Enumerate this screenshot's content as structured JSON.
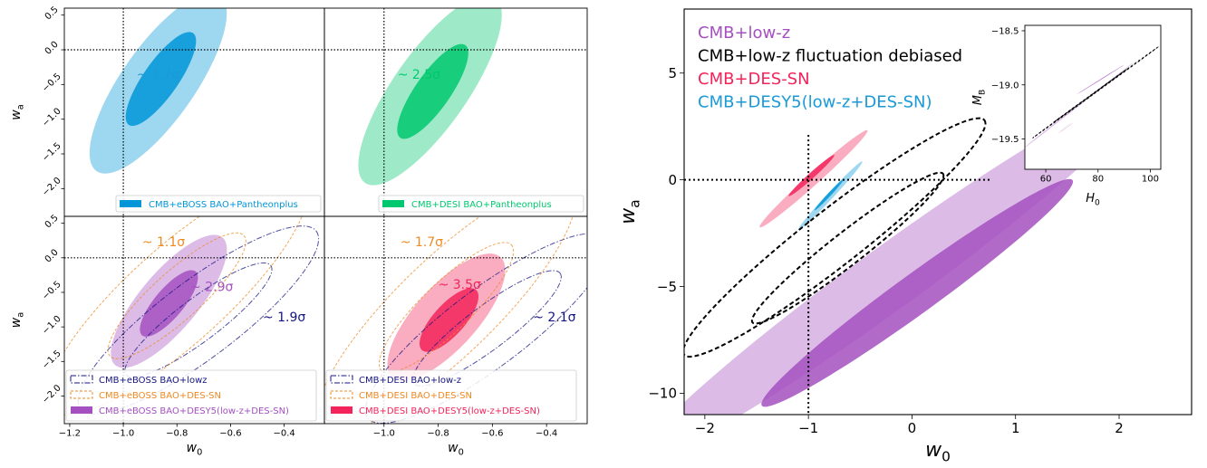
{
  "colors": {
    "eboss_blue": "#0096d8",
    "desi_green": "#00c86e",
    "purple": "#a450c0",
    "pink": "#f2245a",
    "orange": "#ee8a23",
    "navy": "#141480",
    "black": "#000000",
    "cyan_text": "#1a9ad6"
  },
  "chart_data": [
    {
      "type": "scatter",
      "panel": "top-left",
      "xlabel": "",
      "ylabel": "w_a",
      "xlim": [
        -1.22,
        -0.25
      ],
      "ylim": [
        -2.4,
        0.6
      ],
      "reference_lines": {
        "x": -1.0,
        "y": 0.0
      },
      "yticks": [
        "0.5",
        "0.0",
        "−0.5",
        "−1.0",
        "−1.5",
        "−2.0"
      ],
      "contours": [
        {
          "series": "CMB+eBOSS BAO+Pantheonplus",
          "color": "#0096d8",
          "level": "95%",
          "cx": -0.87,
          "cy": -0.48,
          "rx": 0.23,
          "ry": 0.038,
          "angle_deg": 55
        },
        {
          "series": "CMB+eBOSS BAO+Pantheonplus",
          "color": "#0096d8",
          "level": "68%",
          "cx": -0.86,
          "cy": -0.42,
          "rx": 0.12,
          "ry": 0.018,
          "angle_deg": 55
        }
      ],
      "annotations": [
        {
          "text": "~ 1.7σ",
          "x": -0.95,
          "y": -0.42,
          "color": "#1a9ad6"
        }
      ],
      "legend": {
        "placement": "lower-right",
        "entries": [
          {
            "label": "CMB+eBOSS BAO+Pantheonplus",
            "style": "filled",
            "color": "#0096d8"
          }
        ]
      }
    },
    {
      "type": "scatter",
      "panel": "top-right",
      "xlabel": "",
      "ylabel": "",
      "xlim": [
        -1.22,
        -0.25
      ],
      "ylim": [
        -2.4,
        0.6
      ],
      "reference_lines": {
        "x": -1.0,
        "y": 0.0
      },
      "contours": [
        {
          "series": "CMB+DESI BAO+Pantheonplus",
          "color": "#00c86e",
          "level": "95%",
          "cx": -0.83,
          "cy": -0.58,
          "rx": 0.24,
          "ry": 0.038,
          "angle_deg": 55
        },
        {
          "series": "CMB+DESI BAO+Pantheonplus",
          "color": "#00c86e",
          "level": "68%",
          "cx": -0.82,
          "cy": -0.6,
          "rx": 0.12,
          "ry": 0.018,
          "angle_deg": 55
        }
      ],
      "annotations": [
        {
          "text": "~ 2.5σ",
          "x": -0.95,
          "y": -0.42,
          "color": "#00c86e"
        }
      ],
      "legend": {
        "placement": "lower-right",
        "entries": [
          {
            "label": "CMB+DESI BAO+Pantheonplus",
            "style": "filled",
            "color": "#00c86e"
          }
        ]
      }
    },
    {
      "type": "scatter",
      "panel": "bottom-left",
      "xlabel": "w_0",
      "ylabel": "w_a",
      "xlim": [
        -1.22,
        -0.25
      ],
      "ylim": [
        -2.4,
        0.6
      ],
      "reference_lines": {
        "x": -1.0,
        "y": 0.0
      },
      "xticks": [
        "−1.2",
        "−1.0",
        "−0.8",
        "−0.6",
        "−0.4"
      ],
      "yticks": [
        "0.5",
        "0.0",
        "−0.5",
        "−1.0",
        "−1.5",
        "−2.0"
      ],
      "contours": [
        {
          "series": "CMB+eBOSS BAO+lowz",
          "color": "#141480",
          "level": "95%",
          "style": "dashdot",
          "cx": -0.72,
          "cy": -0.9,
          "rx": 0.44,
          "ry": 0.04,
          "angle_deg": 37
        },
        {
          "series": "CMB+eBOSS BAO+lowz",
          "color": "#141480",
          "level": "68%",
          "style": "dashdot",
          "cx": -0.72,
          "cy": -0.9,
          "rx": 0.27,
          "ry": 0.022,
          "angle_deg": 37
        },
        {
          "series": "CMB+eBOSS BAO+DES-SN",
          "color": "#ee8a23",
          "level": "95%",
          "style": "dashed",
          "cx": -0.8,
          "cy": -0.55,
          "rx": 0.47,
          "ry": 0.05,
          "angle_deg": 42
        },
        {
          "series": "CMB+eBOSS BAO+DES-SN",
          "color": "#ee8a23",
          "level": "68%",
          "style": "dashed",
          "cx": -0.8,
          "cy": -0.55,
          "rx": 0.25,
          "ry": 0.025,
          "angle_deg": 42
        },
        {
          "series": "CMB+eBOSS BAO+DESY5(low-z+DES-SN)",
          "color": "#a450c0",
          "level": "95%",
          "cx": -0.83,
          "cy": -0.63,
          "rx": 0.2,
          "ry": 0.03,
          "angle_deg": 50
        },
        {
          "series": "CMB+eBOSS BAO+DESY5(low-z+DES-SN)",
          "color": "#a450c0",
          "level": "68%",
          "cx": -0.83,
          "cy": -0.66,
          "rx": 0.1,
          "ry": 0.015,
          "angle_deg": 50
        }
      ],
      "annotations": [
        {
          "text": "~ 1.1σ",
          "x": -0.93,
          "y": 0.17,
          "color": "#ee8a23"
        },
        {
          "text": "~ 2.9σ",
          "x": -0.75,
          "y": -0.48,
          "color": "#a450c0"
        },
        {
          "text": "~ 1.9σ",
          "x": -0.48,
          "y": -0.92,
          "color": "#141480"
        }
      ],
      "legend": {
        "placement": "lower-center",
        "entries": [
          {
            "label": "CMB+eBOSS BAO+lowz",
            "style": "dashdot",
            "color": "#141480"
          },
          {
            "label": "CMB+eBOSS BAO+DES-SN",
            "style": "dashed",
            "color": "#ee8a23"
          },
          {
            "label": "CMB+eBOSS BAO+DESY5(low-z+DES-SN)",
            "style": "filled",
            "color": "#a450c0"
          }
        ]
      }
    },
    {
      "type": "scatter",
      "panel": "bottom-right",
      "xlabel": "w_0",
      "ylabel": "",
      "xlim": [
        -1.22,
        -0.25
      ],
      "ylim": [
        -2.4,
        0.6
      ],
      "reference_lines": {
        "x": -1.0,
        "y": 0.0
      },
      "xticks": [
        "−1.0",
        "−0.8",
        "−0.6",
        "−0.4"
      ],
      "contours": [
        {
          "series": "CMB+DESI BAO+low-z",
          "color": "#141480",
          "level": "95%",
          "style": "dashdot",
          "cx": -0.62,
          "cy": -1.02,
          "rx": 0.44,
          "ry": 0.04,
          "angle_deg": 37
        },
        {
          "series": "CMB+DESI BAO+low-z",
          "color": "#141480",
          "level": "68%",
          "style": "dashdot",
          "cx": -0.62,
          "cy": -1.02,
          "rx": 0.27,
          "ry": 0.022,
          "angle_deg": 37
        },
        {
          "series": "CMB+DESI BAO+DES-SN",
          "color": "#ee8a23",
          "level": "95%",
          "style": "dashed",
          "cx": -0.77,
          "cy": -0.72,
          "rx": 0.46,
          "ry": 0.05,
          "angle_deg": 44
        },
        {
          "series": "CMB+DESI BAO+DES-SN",
          "color": "#ee8a23",
          "level": "68%",
          "style": "dashed",
          "cx": -0.77,
          "cy": -0.72,
          "rx": 0.24,
          "ry": 0.025,
          "angle_deg": 44
        },
        {
          "series": "CMB+DESI BAO+DESY5(low-z+DES-SN)",
          "color": "#f2245a",
          "level": "95%",
          "cx": -0.77,
          "cy": -0.86,
          "rx": 0.2,
          "ry": 0.032,
          "angle_deg": 48
        },
        {
          "series": "CMB+DESI BAO+DESY5(low-z+DES-SN)",
          "color": "#f2245a",
          "level": "68%",
          "cx": -0.76,
          "cy": -0.9,
          "rx": 0.1,
          "ry": 0.016,
          "angle_deg": 48
        }
      ],
      "annotations": [
        {
          "text": "~ 1.7σ",
          "x": -0.94,
          "y": 0.17,
          "color": "#ee8a23"
        },
        {
          "text": "~ 3.5σ",
          "x": -0.8,
          "y": -0.45,
          "color": "#f2245a"
        },
        {
          "text": "~ 2.1σ",
          "x": -0.45,
          "y": -0.92,
          "color": "#141480"
        }
      ],
      "legend": {
        "placement": "lower-center",
        "entries": [
          {
            "label": "CMB+DESI BAO+low-z",
            "style": "dashdot",
            "color": "#141480"
          },
          {
            "label": "CMB+DESI BAO+DES-SN",
            "style": "dashed",
            "color": "#ee8a23"
          },
          {
            "label": "CMB+DESI BAO+DESY5(low-z+DES-SN)",
            "style": "filled",
            "color": "#f2245a"
          }
        ]
      }
    },
    {
      "type": "scatter",
      "panel": "main-right",
      "xlabel": "w_0",
      "ylabel": "w_a",
      "xlim": [
        -2.2,
        2.7
      ],
      "ylim": [
        -11,
        8
      ],
      "reference_lines": {
        "x": -1.0,
        "y": 0.0,
        "x_line_ymax": 2.1,
        "y_line_xmax": 0.75
      },
      "xticks": [
        "−2",
        "−1",
        "0",
        "1",
        "2"
      ],
      "yticks": [
        "5",
        "0",
        "−5",
        "−10"
      ],
      "contours": [
        {
          "series": "CMB+low-z",
          "color": "#a450c0",
          "level": "95%",
          "cx": -0.22,
          "cy": -4.6,
          "rx": 2.42,
          "ry": 0.27,
          "angle_deg": 36
        },
        {
          "series": "CMB+low-z",
          "color": "#a450c0",
          "level": "68%",
          "cx": 0.05,
          "cy": -5.3,
          "rx": 1.5,
          "ry": 0.17,
          "angle_deg": 36
        },
        {
          "series": "CMB+low-z fluctuation debiased",
          "color": "#000000",
          "level": "95%",
          "style": "dashed",
          "cx": -0.75,
          "cy": -2.7,
          "rx": 1.45,
          "ry": 0.24,
          "angle_deg": 38
        },
        {
          "series": "CMB+low-z fluctuation debiased",
          "color": "#000000",
          "level": "68%",
          "style": "dashed",
          "cx": -0.62,
          "cy": -3.2,
          "rx": 0.92,
          "ry": 0.14,
          "angle_deg": 38
        },
        {
          "series": "CMB+DES-SN",
          "color": "#f2245a",
          "level": "95%",
          "cx": -0.95,
          "cy": 0.05,
          "rx": 0.52,
          "ry": 0.05,
          "angle_deg": 42
        },
        {
          "series": "CMB+DES-SN",
          "color": "#f2245a",
          "level": "68%",
          "cx": -0.97,
          "cy": 0.2,
          "rx": 0.22,
          "ry": 0.025,
          "angle_deg": 42
        },
        {
          "series": "CMB+DESY5(low-z+DES-SN)",
          "color": "#0096d8",
          "level": "95%",
          "cx": -0.79,
          "cy": -0.75,
          "rx": 0.31,
          "ry": 0.028,
          "angle_deg": 47
        },
        {
          "series": "CMB+DESY5(low-z+DES-SN)",
          "color": "#0096d8",
          "level": "68%",
          "cx": -0.8,
          "cy": -0.7,
          "rx": 0.14,
          "ry": 0.014,
          "angle_deg": 47
        }
      ],
      "legend": {
        "placement": "top-left",
        "entries": [
          {
            "label": "CMB+low-z",
            "color": "#a450c0"
          },
          {
            "label": "CMB+low-z fluctuation debiased",
            "color": "#000000"
          },
          {
            "label": "CMB+DES-SN",
            "color": "#f2245a"
          },
          {
            "label": "CMB+DESY5(low-z+DES-SN)",
            "color": "#1a9ad6"
          }
        ]
      }
    },
    {
      "type": "scatter",
      "panel": "inset",
      "xlabel": "H_0",
      "ylabel": "M_B",
      "xlim": [
        52,
        104
      ],
      "ylim": [
        -19.78,
        -18.45
      ],
      "xticks": [
        "60",
        "80",
        "100"
      ],
      "yticks": [
        "−18.5",
        "−19.0",
        "−19.5"
      ],
      "contours": [
        {
          "series": "CMB+low-z",
          "color": "#a450c0",
          "level": "95%",
          "cx": 72,
          "cy": -19.2,
          "rx": 22,
          "ry": 4,
          "angle_deg": 38
        },
        {
          "series": "CMB+low-z",
          "color": "#a450c0",
          "level": "68%",
          "cx": 81,
          "cy": -18.95,
          "rx": 9,
          "ry": 2,
          "angle_deg": 32
        },
        {
          "series": "CMB+low-z fluctuation debiased",
          "color": "#000000",
          "level": "95%",
          "style": "dashed",
          "cx": 79,
          "cy": -19.07,
          "rx": 24,
          "ry": 2,
          "angle_deg": 36
        },
        {
          "series": "CMB+low-z fluctuation debiased",
          "color": "#000000",
          "level": "68%",
          "style": "dashed",
          "cx": 77,
          "cy": -19.1,
          "rx": 14,
          "ry": 1,
          "angle_deg": 36
        },
        {
          "series": "CMB+DES-SN",
          "color": "#f2245a",
          "level": "95%",
          "cx": 67.7,
          "cy": -19.4,
          "rx": 3,
          "ry": 1.3,
          "angle_deg": 35
        },
        {
          "series": "CMB+DESY5(low-z+DES-SN)",
          "color": "#0096d8",
          "level": "95%",
          "cx": 67.6,
          "cy": -19.39,
          "rx": 2.2,
          "ry": 0.7,
          "angle_deg": 38
        }
      ]
    }
  ]
}
